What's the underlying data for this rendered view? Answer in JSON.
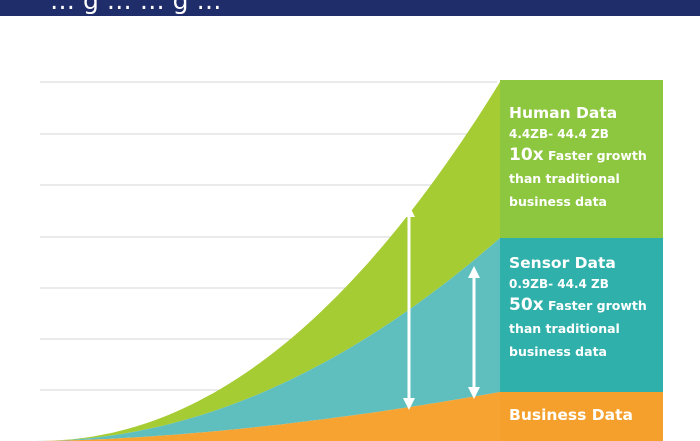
{
  "colors": {
    "header": "#1f2d6b",
    "human": "#a6cc33",
    "sensor": "#5fbfbf",
    "business": "#f6a331",
    "human_panel": "#8dc63f",
    "sensor_panel": "#2fb0aa",
    "business_panel": "#f5a02c",
    "grid": "#d4d4d4",
    "arrow": "#ffffff"
  },
  "header": {
    "title": "… g … … g …"
  },
  "chart_data": {
    "type": "area",
    "stacked": true,
    "series": [
      {
        "name": "Business Data",
        "color": "#f6a331"
      },
      {
        "name": "Sensor Data",
        "color": "#5fbfbf"
      },
      {
        "name": "Human Data",
        "color": "#a6cc33"
      }
    ],
    "grid": true,
    "xlabel": "",
    "ylabel": "",
    "labels": [
      {
        "id": "human",
        "title": "Human Data",
        "range": "4.4ZB- 44.4 ZB",
        "multiplier": "10x",
        "growth": "Faster growth",
        "line2": "than traditional",
        "line3": "business data"
      },
      {
        "id": "sensor",
        "title": "Sensor Data",
        "range": "0.9ZB- 44.4 ZB",
        "multiplier": "50x",
        "growth": "Faster growth",
        "line2": "than traditional",
        "line3": "business data"
      },
      {
        "id": "business",
        "title": "Business Data"
      }
    ]
  }
}
